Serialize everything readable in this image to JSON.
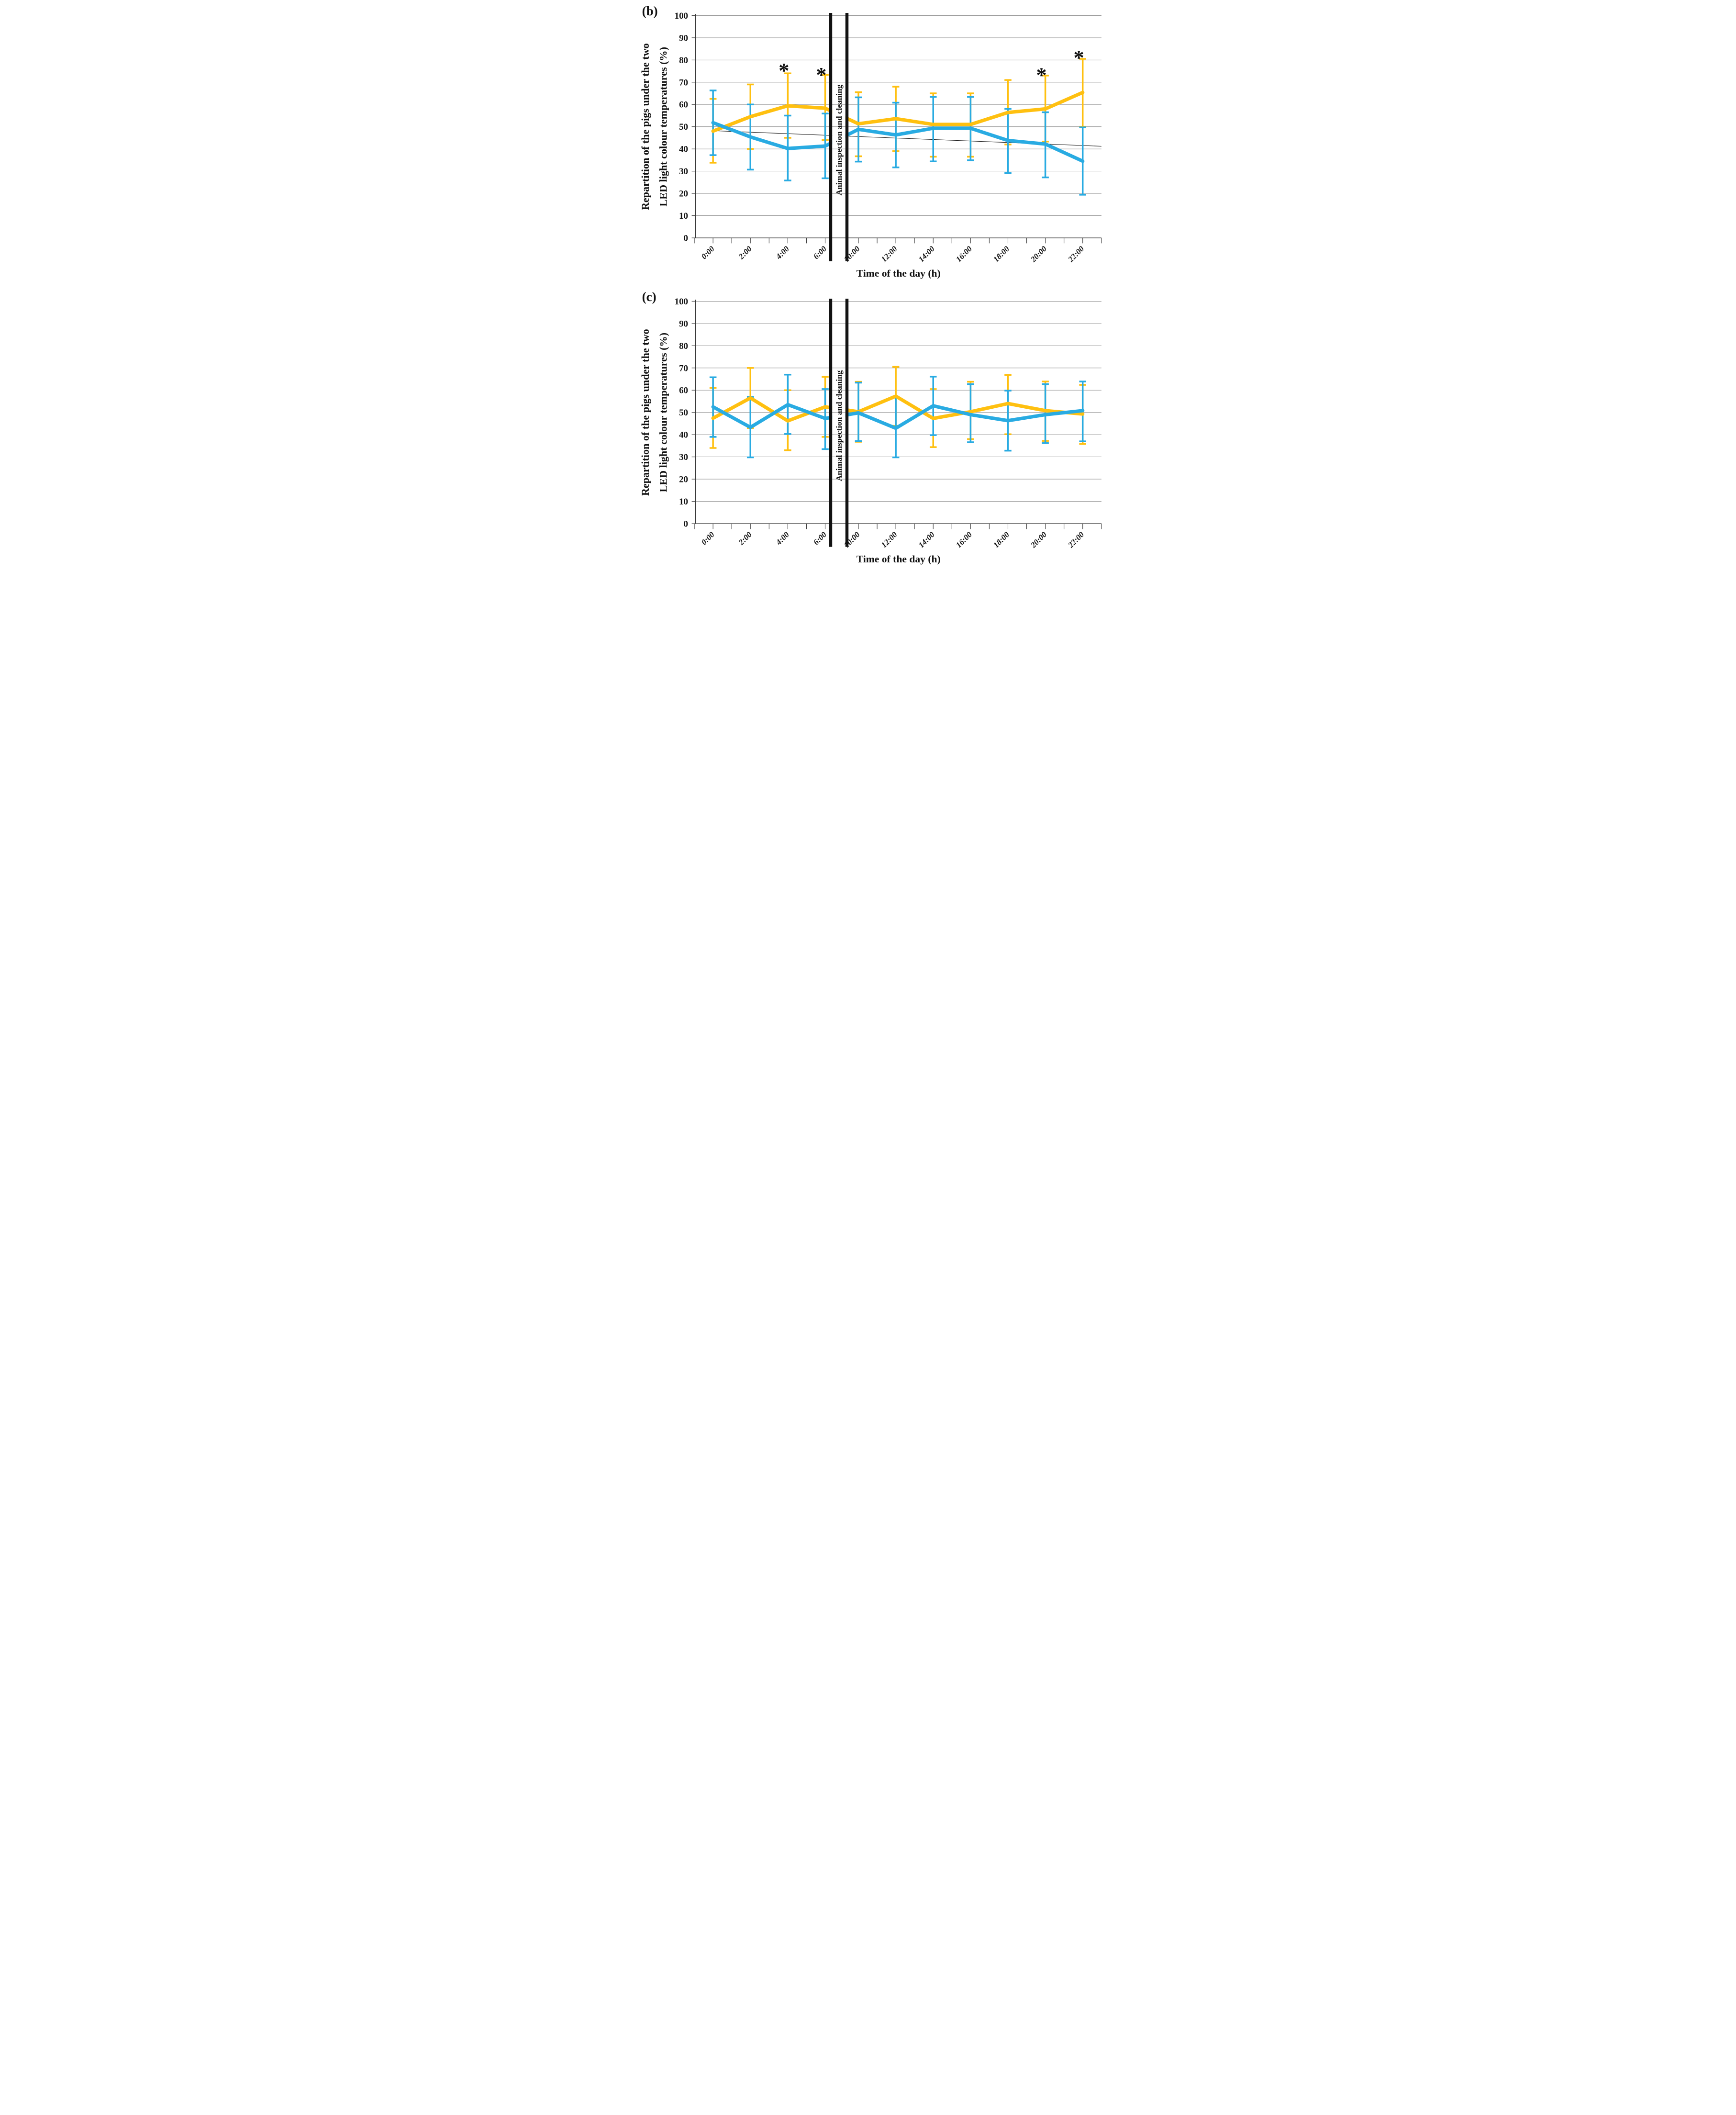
{
  "figure": {
    "background": "#ffffff",
    "colors": {
      "yellow_series": "#FFC010",
      "blue_series": "#29ABE2",
      "gridline": "#858585",
      "axis": "#3a3a3a",
      "break_bar": "#121212",
      "trend_line": "#1a1a1a",
      "text": "#111111"
    }
  },
  "chart_data": [
    {
      "id": "b",
      "panel_label": "(b)",
      "type": "line",
      "ylabel_line1": "Repartition of the pigs under the two",
      "ylabel_line2": "LED light colour temperatures (%)",
      "xlabel": "Time of the day (h)",
      "break_label": "Animal inspection and cleaning",
      "ylim": [
        0,
        100
      ],
      "ytick_labels": [
        "0",
        "10",
        "20",
        "30",
        "40",
        "50",
        "60",
        "70",
        "80",
        "90",
        "100"
      ],
      "x_hours": [
        0,
        2,
        4,
        6,
        10,
        12,
        14,
        16,
        18,
        20,
        22
      ],
      "x_labels": [
        "0:00",
        "2:00",
        "4:00",
        "6:00",
        "10:00",
        "12:00",
        "14:00",
        "16:00",
        "18:00",
        "20:00",
        "22:00"
      ],
      "grid": true,
      "legend": "none",
      "axis_break_hours": [
        7,
        9.5
      ],
      "series": [
        {
          "name": "yellow",
          "color": "#FFC010",
          "values": [
            48.0,
            54.5,
            59.4,
            58.3,
            51.3,
            53.6,
            51.0,
            51.0,
            56.4,
            58.0,
            65.4
          ],
          "err_high": [
            62.5,
            69.0,
            74.0,
            73.3,
            65.5,
            68.0,
            65.0,
            65.0,
            71.0,
            73.0,
            80.5
          ],
          "err_low": [
            33.8,
            40.0,
            45.0,
            44.0,
            36.7,
            39.0,
            36.5,
            36.5,
            42.0,
            43.3,
            50.0
          ]
        },
        {
          "name": "blue",
          "color": "#29ABE2",
          "values": [
            51.8,
            45.4,
            40.2,
            41.3,
            48.8,
            46.3,
            49.3,
            49.3,
            43.8,
            42.2,
            34.5
          ],
          "err_high": [
            66.3,
            60.0,
            55.0,
            55.9,
            63.2,
            60.8,
            63.4,
            63.4,
            58.0,
            56.5,
            49.7
          ],
          "err_low": [
            37.2,
            30.7,
            25.8,
            26.8,
            34.3,
            31.7,
            34.4,
            34.9,
            29.2,
            27.2,
            19.4
          ]
        }
      ],
      "trend_line": {
        "start_hour": 0,
        "start_value": 48.2,
        "end_hour": 23,
        "end_value": 41.2
      },
      "asterisk_glyph": "*",
      "asterisks": [
        {
          "hour": 4,
          "value": 77.0
        },
        {
          "hour": 6,
          "value": 75.1
        },
        {
          "hour": 20,
          "value": 75.0
        },
        {
          "hour": 22,
          "value": 82.9
        }
      ]
    },
    {
      "id": "c",
      "panel_label": "(c)",
      "type": "line",
      "ylabel_line1": "Repartition of the pigs under the two",
      "ylabel_line2": "LED light colour temperatures (%)",
      "xlabel": "Time of the day (h)",
      "break_label": "Animal inspection and cleaning",
      "ylim": [
        0,
        100
      ],
      "ytick_labels": [
        "0",
        "10",
        "20",
        "30",
        "40",
        "50",
        "60",
        "70",
        "80",
        "90",
        "100"
      ],
      "x_hours": [
        0,
        2,
        4,
        6,
        10,
        12,
        14,
        16,
        18,
        20,
        22
      ],
      "x_labels": [
        "0:00",
        "2:00",
        "4:00",
        "6:00",
        "10:00",
        "12:00",
        "14:00",
        "16:00",
        "18:00",
        "20:00",
        "22:00"
      ],
      "grid": true,
      "legend": "none",
      "axis_break_hours": [
        7,
        9.5
      ],
      "series": [
        {
          "name": "yellow",
          "color": "#FFC010",
          "values": [
            47.4,
            56.5,
            46.2,
            52.5,
            50.3,
            57.3,
            47.3,
            50.3,
            54.0,
            50.8,
            49.3
          ],
          "err_high": [
            61.0,
            70.0,
            60.0,
            66.0,
            63.8,
            70.5,
            60.5,
            63.8,
            66.8,
            63.9,
            62.4
          ],
          "err_low": [
            34.0,
            43.0,
            33.0,
            39.0,
            36.8,
            44.0,
            34.4,
            38.0,
            40.2,
            37.2,
            35.8
          ]
        },
        {
          "name": "blue",
          "color": "#29ABE2",
          "values": [
            52.5,
            43.3,
            53.5,
            47.3,
            49.8,
            42.9,
            53.0,
            49.0,
            46.3,
            49.0,
            50.8
          ],
          "err_high": [
            65.8,
            57.0,
            67.0,
            60.5,
            63.4,
            56.8,
            66.1,
            62.7,
            59.8,
            62.7,
            63.9
          ],
          "err_low": [
            39.0,
            29.8,
            40.3,
            33.5,
            37.1,
            29.8,
            39.8,
            36.6,
            32.8,
            36.2,
            37.0
          ]
        }
      ],
      "trend_line": null,
      "asterisk_glyph": "*",
      "asterisks": []
    }
  ]
}
